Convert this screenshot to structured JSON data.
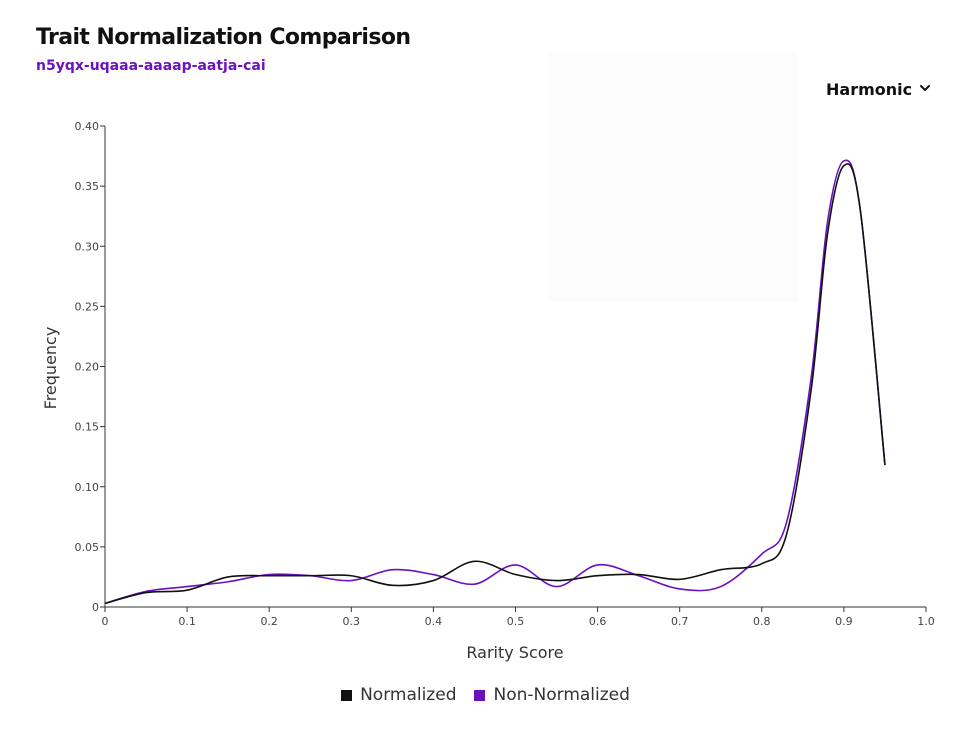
{
  "title": "Trait Normalization Comparison",
  "subtitle": "n5yqx-uqaaa-aaaap-aatja-cai",
  "dropdown": {
    "selected": "Harmonic",
    "icon": "chevron-down-icon"
  },
  "chart_data": {
    "type": "line",
    "xlabel": "Rarity Score",
    "ylabel": "Frequency",
    "xlim": [
      0,
      1.0
    ],
    "ylim": [
      0,
      0.4
    ],
    "x_ticks": [
      "0",
      "0.1",
      "0.2",
      "0.3",
      "0.4",
      "0.5",
      "0.6",
      "0.7",
      "0.8",
      "0.9",
      "1.0"
    ],
    "y_ticks": [
      "0",
      "0.05",
      "0.10",
      "0.15",
      "0.20",
      "0.25",
      "0.30",
      "0.35",
      "0.40"
    ],
    "grid": false,
    "legend_position": "bottom-center",
    "series": [
      {
        "name": "Normalized",
        "color": "#111111",
        "points": [
          [
            0,
            0.003
          ],
          [
            0.05,
            0.012
          ],
          [
            0.1,
            0.014
          ],
          [
            0.15,
            0.025
          ],
          [
            0.2,
            0.026
          ],
          [
            0.25,
            0.026
          ],
          [
            0.3,
            0.026
          ],
          [
            0.35,
            0.018
          ],
          [
            0.4,
            0.022
          ],
          [
            0.45,
            0.038
          ],
          [
            0.5,
            0.027
          ],
          [
            0.55,
            0.022
          ],
          [
            0.6,
            0.026
          ],
          [
            0.65,
            0.027
          ],
          [
            0.7,
            0.023
          ],
          [
            0.75,
            0.031
          ],
          [
            0.8,
            0.036
          ],
          [
            0.83,
            0.06
          ],
          [
            0.86,
            0.18
          ],
          [
            0.88,
            0.31
          ],
          [
            0.9,
            0.367
          ],
          [
            0.92,
            0.33
          ],
          [
            0.95,
            0.118
          ]
        ]
      },
      {
        "name": "Non-Normalized",
        "color": "#6b10bf",
        "points": [
          [
            0,
            0.003
          ],
          [
            0.05,
            0.013
          ],
          [
            0.1,
            0.017
          ],
          [
            0.15,
            0.021
          ],
          [
            0.2,
            0.027
          ],
          [
            0.25,
            0.026
          ],
          [
            0.3,
            0.022
          ],
          [
            0.35,
            0.031
          ],
          [
            0.4,
            0.027
          ],
          [
            0.45,
            0.019
          ],
          [
            0.5,
            0.035
          ],
          [
            0.55,
            0.017
          ],
          [
            0.6,
            0.035
          ],
          [
            0.65,
            0.026
          ],
          [
            0.7,
            0.015
          ],
          [
            0.75,
            0.017
          ],
          [
            0.8,
            0.044
          ],
          [
            0.83,
            0.07
          ],
          [
            0.86,
            0.19
          ],
          [
            0.88,
            0.32
          ],
          [
            0.9,
            0.371
          ],
          [
            0.92,
            0.33
          ],
          [
            0.95,
            0.118
          ]
        ]
      }
    ]
  }
}
